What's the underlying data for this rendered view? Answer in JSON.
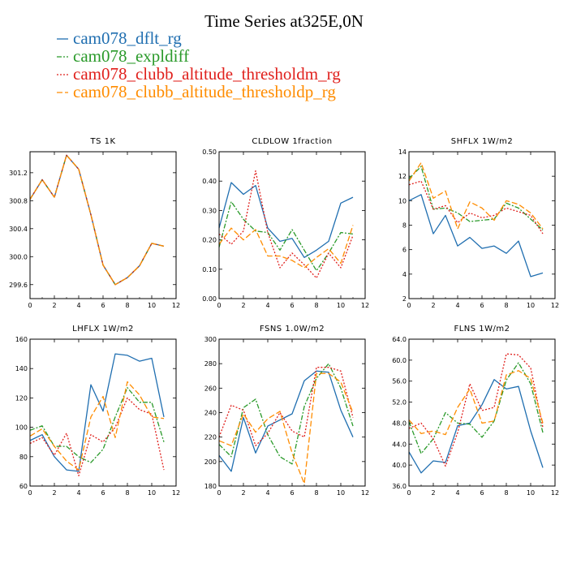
{
  "figure": {
    "title": "Time Series at325E,0N"
  },
  "legend": [
    {
      "label": "cam078_dflt_rg",
      "color": "#1f6eb0",
      "dash": ""
    },
    {
      "label": "cam078_expldiff",
      "color": "#2a9a2a",
      "dash": "6,2,2,2"
    },
    {
      "label": "cam078_clubb_altitude_thresholdm_rg",
      "color": "#e0201c",
      "dash": "2,2"
    },
    {
      "label": "cam078_clubb_altitude_thresholdp_rg",
      "color": "#ff8c00",
      "dash": "7,3"
    }
  ],
  "chart_data": [
    {
      "type": "line",
      "title": "TS   1K",
      "x": [
        0,
        1,
        2,
        3,
        4,
        5,
        6,
        7,
        8,
        9,
        10,
        11
      ],
      "xlim": [
        0,
        12
      ],
      "xticks": [
        0,
        2,
        4,
        6,
        8,
        10,
        12
      ],
      "ylim": [
        299.4,
        301.5
      ],
      "yticks": [
        299.6,
        300.0,
        300.4,
        300.8,
        301.2
      ],
      "ydec": 1,
      "series": [
        {
          "name": "cam078_dflt_rg",
          "values": [
            300.82,
            301.1,
            300.85,
            301.45,
            301.25,
            300.6,
            299.88,
            299.6,
            299.7,
            299.87,
            300.19,
            300.15
          ]
        },
        {
          "name": "cam078_expldiff",
          "values": [
            300.82,
            301.1,
            300.85,
            301.45,
            301.25,
            300.6,
            299.88,
            299.6,
            299.7,
            299.87,
            300.19,
            300.15
          ]
        },
        {
          "name": "cam078_clubb_altitude_thresholdm_rg",
          "values": [
            300.82,
            301.1,
            300.85,
            301.45,
            301.25,
            300.6,
            299.88,
            299.6,
            299.7,
            299.87,
            300.19,
            300.15
          ]
        },
        {
          "name": "cam078_clubb_altitude_thresholdp_rg",
          "values": [
            300.82,
            301.1,
            300.85,
            301.45,
            301.25,
            300.6,
            299.88,
            299.6,
            299.7,
            299.87,
            300.19,
            300.15
          ]
        }
      ]
    },
    {
      "type": "line",
      "title": "CLDLOW   1fraction",
      "x": [
        0,
        1,
        2,
        3,
        4,
        5,
        6,
        7,
        8,
        9,
        10,
        11
      ],
      "xlim": [
        0,
        12
      ],
      "xticks": [
        0,
        2,
        4,
        6,
        8,
        10,
        12
      ],
      "ylim": [
        0,
        0.5
      ],
      "yticks": [
        0,
        0.1,
        0.2,
        0.3,
        0.4,
        0.5
      ],
      "ydec": 2,
      "series": [
        {
          "name": "cam078_dflt_rg",
          "values": [
            0.24,
            0.395,
            0.355,
            0.385,
            0.24,
            0.195,
            0.205,
            0.14,
            0.165,
            0.195,
            0.325,
            0.345
          ]
        },
        {
          "name": "cam078_expldiff",
          "values": [
            0.175,
            0.33,
            0.27,
            0.23,
            0.225,
            0.165,
            0.235,
            0.165,
            0.095,
            0.155,
            0.225,
            0.22
          ]
        },
        {
          "name": "cam078_clubb_altitude_thresholdm_rg",
          "values": [
            0.22,
            0.185,
            0.23,
            0.435,
            0.225,
            0.105,
            0.155,
            0.115,
            0.07,
            0.155,
            0.105,
            0.215
          ]
        },
        {
          "name": "cam078_clubb_altitude_thresholdp_rg",
          "values": [
            0.185,
            0.24,
            0.2,
            0.235,
            0.145,
            0.145,
            0.13,
            0.105,
            0.14,
            0.17,
            0.12,
            0.25
          ]
        }
      ]
    },
    {
      "type": "line",
      "title": "SHFLX   1W/m2",
      "x": [
        0,
        1,
        2,
        3,
        4,
        5,
        6,
        7,
        8,
        9,
        10,
        11
      ],
      "xlim": [
        0,
        12
      ],
      "xticks": [
        0,
        2,
        4,
        6,
        8,
        10,
        12
      ],
      "ylim": [
        2,
        14
      ],
      "yticks": [
        2,
        4,
        6,
        8,
        10,
        12,
        14
      ],
      "ydec": 0,
      "series": [
        {
          "name": "cam078_dflt_rg",
          "values": [
            10.0,
            10.5,
            7.3,
            8.8,
            6.3,
            7.0,
            6.1,
            6.3,
            5.7,
            6.7,
            3.8,
            4.1
          ]
        },
        {
          "name": "cam078_expldiff",
          "values": [
            11.8,
            12.8,
            9.3,
            9.4,
            9.0,
            8.3,
            8.4,
            8.5,
            9.8,
            9.4,
            8.5,
            7.6
          ]
        },
        {
          "name": "cam078_clubb_altitude_thresholdm_rg",
          "values": [
            11.3,
            11.6,
            9.3,
            9.6,
            8.2,
            9.0,
            8.6,
            8.8,
            9.4,
            9.1,
            8.8,
            7.3
          ]
        },
        {
          "name": "cam078_clubb_altitude_thresholdp_rg",
          "values": [
            11.6,
            13.1,
            10.2,
            10.8,
            7.7,
            9.9,
            9.4,
            8.4,
            10.0,
            9.7,
            9.0,
            7.7
          ]
        }
      ]
    },
    {
      "type": "line",
      "title": "LHFLX   1W/m2",
      "x": [
        0,
        1,
        2,
        3,
        4,
        5,
        6,
        7,
        8,
        9,
        10,
        11
      ],
      "xlim": [
        0,
        12
      ],
      "xticks": [
        0,
        2,
        4,
        6,
        8,
        10,
        12
      ],
      "ylim": [
        60,
        160
      ],
      "yticks": [
        60,
        80,
        100,
        120,
        140,
        160
      ],
      "ydec": 0,
      "series": [
        {
          "name": "cam078_dflt_rg",
          "values": [
            91,
            95,
            80,
            71,
            70,
            129,
            111,
            150,
            149,
            145,
            147,
            107
          ]
        },
        {
          "name": "cam078_expldiff",
          "values": [
            98,
            101,
            87,
            87,
            80,
            76,
            85,
            107,
            127,
            117,
            117,
            90
          ]
        },
        {
          "name": "cam078_clubb_altitude_thresholdm_rg",
          "values": [
            89,
            93,
            81,
            96,
            67,
            95,
            90,
            100,
            120,
            112,
            109,
            71
          ]
        },
        {
          "name": "cam078_clubb_altitude_thresholdp_rg",
          "values": [
            94,
            99,
            87,
            77,
            71,
            107,
            121,
            93,
            131,
            122,
            107,
            106
          ]
        }
      ]
    },
    {
      "type": "line",
      "title": "FSNS   1.0W/m2",
      "x": [
        0,
        1,
        2,
        3,
        4,
        5,
        6,
        7,
        8,
        9,
        10,
        11
      ],
      "xlim": [
        0,
        12
      ],
      "xticks": [
        0,
        2,
        4,
        6,
        8,
        10,
        12
      ],
      "ylim": [
        180,
        300
      ],
      "yticks": [
        180,
        200,
        220,
        240,
        260,
        280,
        300
      ],
      "ydec": 0,
      "series": [
        {
          "name": "cam078_dflt_rg",
          "values": [
            205,
            192,
            236,
            207,
            229,
            234,
            239,
            266,
            274,
            273,
            242,
            220
          ]
        },
        {
          "name": "cam078_expldiff",
          "values": [
            214,
            204,
            244,
            251,
            222,
            204,
            198,
            245,
            268,
            280,
            260,
            229
          ]
        },
        {
          "name": "cam078_clubb_altitude_thresholdm_rg",
          "values": [
            220,
            246,
            242,
            213,
            223,
            240,
            225,
            220,
            277,
            277,
            274,
            236
          ]
        },
        {
          "name": "cam078_clubb_altitude_thresholdp_rg",
          "values": [
            217,
            213,
            239,
            224,
            235,
            241,
            207,
            182,
            272,
            272,
            265,
            240
          ]
        }
      ]
    },
    {
      "type": "line",
      "title": "FLNS   1W/m2",
      "x": [
        0,
        1,
        2,
        3,
        4,
        5,
        6,
        7,
        8,
        9,
        10,
        11
      ],
      "xlim": [
        0,
        12
      ],
      "xticks": [
        0,
        2,
        4,
        6,
        8,
        10,
        12
      ],
      "ylim": [
        36,
        64
      ],
      "yticks": [
        36,
        40,
        44,
        48,
        52,
        56,
        60,
        64
      ],
      "ydec": 1,
      "series": [
        {
          "name": "cam078_dflt_rg",
          "values": [
            42.5,
            38.5,
            40.8,
            40.5,
            47.5,
            48.0,
            51.5,
            56.3,
            54.5,
            55.0,
            46.5,
            39.5
          ]
        },
        {
          "name": "cam078_expldiff",
          "values": [
            48.3,
            42.2,
            45.0,
            50.0,
            48.0,
            47.8,
            45.3,
            48.4,
            56.2,
            59.5,
            55.5,
            46.2
          ]
        },
        {
          "name": "cam078_clubb_altitude_thresholdm_rg",
          "values": [
            47.0,
            48.0,
            45.0,
            39.8,
            46.2,
            55.5,
            50.4,
            51.0,
            61.2,
            61.0,
            58.5,
            47.2
          ]
        },
        {
          "name": "cam078_clubb_altitude_thresholdp_rg",
          "values": [
            48.6,
            46.0,
            46.5,
            45.8,
            51.0,
            54.5,
            48.0,
            48.4,
            57.2,
            58.0,
            56.5,
            48.0
          ]
        }
      ]
    }
  ]
}
